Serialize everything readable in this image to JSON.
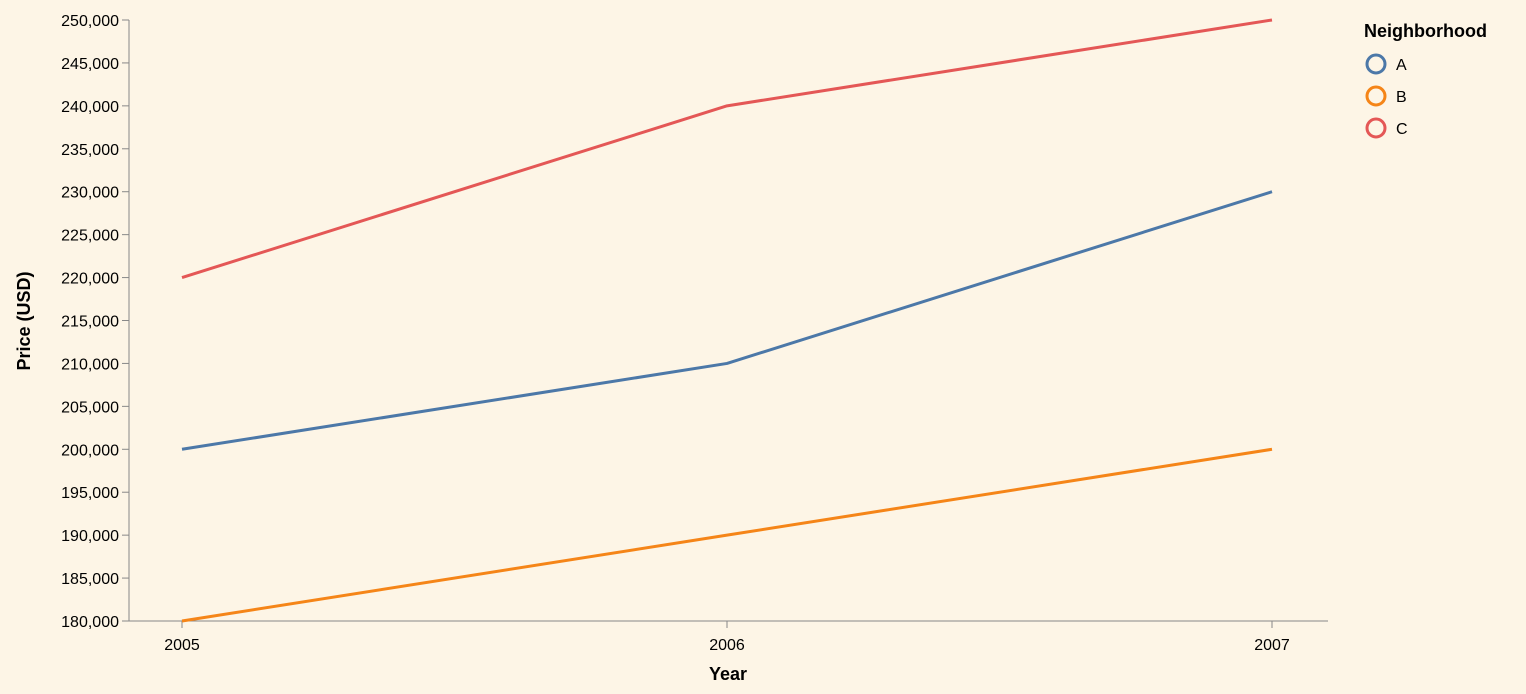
{
  "chart_data": {
    "type": "line",
    "title": "",
    "xlabel": "Year",
    "ylabel": "Price (USD)",
    "x": [
      "2005",
      "2006",
      "2007"
    ],
    "ylim": [
      180000,
      250000
    ],
    "yticks": [
      "180,000",
      "185,000",
      "190,000",
      "195,000",
      "200,000",
      "205,000",
      "210,000",
      "215,000",
      "220,000",
      "225,000",
      "230,000",
      "235,000",
      "240,000",
      "245,000",
      "250,000"
    ],
    "grid": false,
    "legend": {
      "title": "Neighborhood",
      "placement": "top-right"
    },
    "series": [
      {
        "name": "A",
        "color": "#4c78a8",
        "values": [
          200000,
          210000,
          230000
        ]
      },
      {
        "name": "B",
        "color": "#f58518",
        "values": [
          180000,
          190000,
          200000
        ]
      },
      {
        "name": "C",
        "color": "#e45756",
        "values": [
          220000,
          240000,
          250000
        ]
      }
    ]
  }
}
